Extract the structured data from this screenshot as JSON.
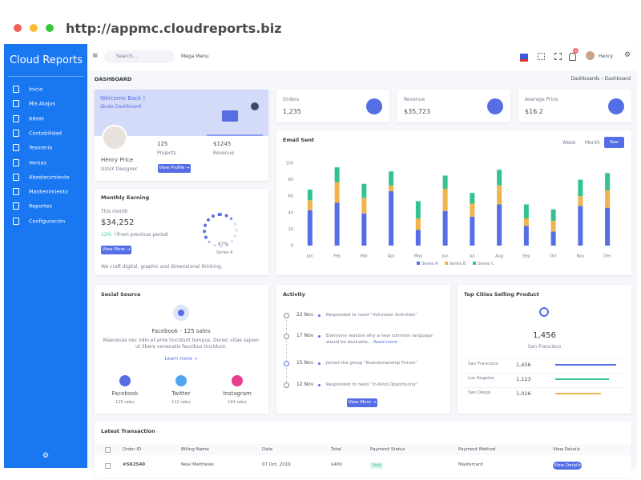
{
  "browser": {
    "url": "http://appmc.cloudreports.biz"
  },
  "sidebar": {
    "brand": "Cloud Reports",
    "menu": [
      "Inicio",
      "Mis Atajos",
      "RRHH",
      "Contabilidad",
      "Tesoreria",
      "Ventas",
      "Abastecimiento",
      "Mantenimiento",
      "Reportes",
      "Configuración"
    ]
  },
  "topbar": {
    "search": "Search...",
    "mega_menu": "Mega Menu",
    "badge": "3",
    "user": "Henry"
  },
  "page": {
    "title": "DASHBOARD",
    "breadcrumb": [
      "Dashboards",
      "Dashboard"
    ]
  },
  "welcome": {
    "title": "Welcome Back !",
    "subtitle": "Skote Dashboard",
    "name": "Henry Price",
    "role": "UI/UX Designer",
    "projects": "125",
    "projects_label": "Projects",
    "revenue": "$1245",
    "revenue_label": "Revenue",
    "button": "View Profile →"
  },
  "stats": [
    {
      "label": "Orders",
      "value": "1,235"
    },
    {
      "label": "Revenue",
      "value": "$35,723"
    },
    {
      "label": "Average Price",
      "value": "$16.2"
    }
  ],
  "earning": {
    "title": "Monthly Earning",
    "period": "This month",
    "value": "$34,252",
    "change": "12% ↑",
    "change_text": "From previous period",
    "button": "View More →",
    "gauge_value": "67%",
    "gauge_label": "Series A",
    "note": "We craft digital, graphic and dimensional thinking."
  },
  "email_tabs": [
    "Week",
    "Month",
    "Year"
  ],
  "chart_data": {
    "type": "stacked-bar",
    "title": "Email Sent",
    "categories": [
      "Jan",
      "Feb",
      "Mar",
      "Apr",
      "May",
      "Jun",
      "Jul",
      "Aug",
      "Sep",
      "Oct",
      "Nov",
      "Dec"
    ],
    "series": [
      {
        "name": "Series A",
        "color": "#556ee6",
        "values": [
          43,
          52,
          39,
          66,
          19,
          42,
          35,
          50,
          24,
          17,
          48,
          46
        ]
      },
      {
        "name": "Series B",
        "color": "#f1b44c",
        "values": [
          12,
          25,
          19,
          7,
          14,
          27,
          16,
          23,
          9,
          13,
          12,
          21
        ]
      },
      {
        "name": "Series C",
        "color": "#34c38f",
        "values": [
          13,
          18,
          17,
          17,
          21,
          16,
          13,
          19,
          17,
          14,
          20,
          21
        ]
      }
    ],
    "ylim": [
      0,
      100
    ],
    "yticks": [
      0,
      20,
      40,
      60,
      80,
      100
    ]
  },
  "social": {
    "title": "Social Source",
    "headline": "Facebook - 125 sales",
    "text": "Maecenas nec odio et ante tincidunt tempus. Donec vitae sapien ut libero venenatis faucibus tincidunt.",
    "link": "Learn more →",
    "items": [
      {
        "name": "Facebook",
        "sales": "125 sales"
      },
      {
        "name": "Twitter",
        "sales": "112 sales"
      },
      {
        "name": "Instagram",
        "sales": "104 sales"
      }
    ]
  },
  "activity": {
    "title": "Activity",
    "items": [
      {
        "date": "22 Nov",
        "text": "Responded to need “Volunteer Activities”"
      },
      {
        "date": "17 Nov",
        "text": "Everyone realizes why a new common language would be desirable...",
        "link": "Read more"
      },
      {
        "date": "15 Nov",
        "text": "Joined the group “Boardsmanship Forum”"
      },
      {
        "date": "12 Nov",
        "text": "Responded to need “In-Kind Opportunity”"
      }
    ],
    "button": "View More →"
  },
  "cities": {
    "title": "Top Cities Selling Product",
    "value": "1,456",
    "city": "San Francisco",
    "rows": [
      {
        "name": "San Francisco",
        "value": "1,456"
      },
      {
        "name": "Los Angeles",
        "value": "1,123"
      },
      {
        "name": "San Diego",
        "value": "1,026"
      }
    ]
  },
  "transactions": {
    "title": "Latest Transaction",
    "headers": [
      "Order ID",
      "Billing Name",
      "Date",
      "Total",
      "Payment Status",
      "Payment Method",
      "View Details"
    ],
    "rows": [
      [
        "#SK2540",
        "Neal Matthews",
        "07 Oct, 2019",
        "$400",
        "Paid",
        "Mastercard",
        "View Details"
      ]
    ]
  }
}
